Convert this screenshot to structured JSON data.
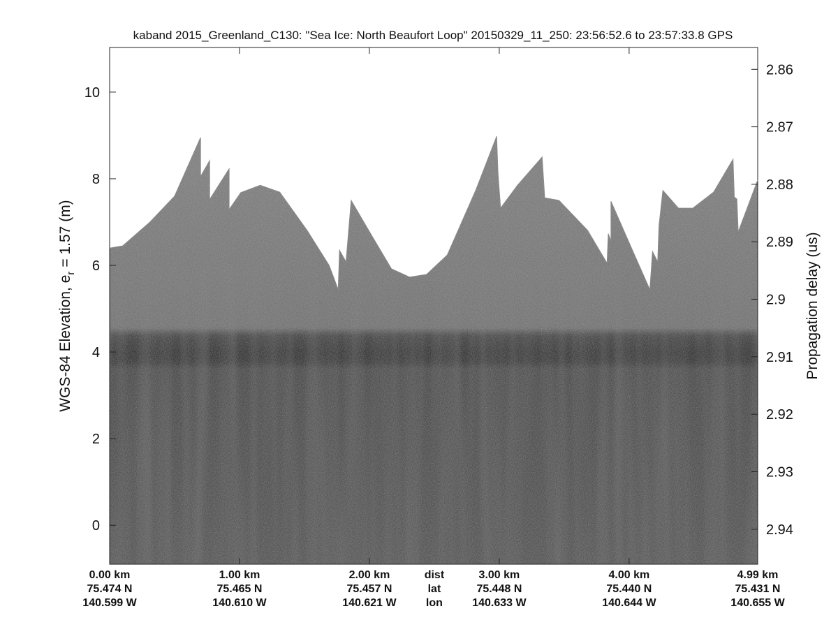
{
  "chart_data": {
    "type": "radargram",
    "title": "kaband 2015_Greenland_C130: \"Sea Ice: North Beaufort Loop\"  20150329_11_250: 23:56:52.6 to 23:57:33.8 GPS",
    "ylabel": {
      "main": "WGS-84 Elevation, e",
      "subscript": "r",
      "after": "= 1.57 (m)"
    },
    "y2label": "Propagation delay (us)",
    "xlim": [
      0,
      4.99
    ],
    "xticks": [
      {
        "value": 0,
        "label": "0.00 km"
      },
      {
        "value": 1,
        "label": "1.00 km"
      },
      {
        "value": 2,
        "label": "2.00 km"
      },
      {
        "value": 3,
        "label": "3.00 km"
      },
      {
        "value": 4,
        "label": "4.00 km"
      },
      {
        "value": 4.99,
        "label": "4.99 km"
      }
    ],
    "xtick_lat": [
      "75.474 N",
      "75.465 N",
      "75.457 N",
      "75.448 N",
      "75.440 N",
      "75.431 N"
    ],
    "xtick_lon": [
      "140.599 W",
      "140.610 W",
      "140.621 W",
      "140.633 W",
      "140.644 W",
      "140.655 W"
    ],
    "row_labels": [
      "dist",
      "lat",
      "lon"
    ],
    "ylim": [
      -0.9,
      11.03
    ],
    "yticks": [
      0,
      2,
      4,
      6,
      8,
      10
    ],
    "y2lim": [
      2.8562,
      2.9461
    ],
    "y2_inverted": true,
    "y2ticks": [
      2.86,
      2.87,
      2.88,
      2.89,
      2.9,
      2.91,
      2.92,
      2.93,
      2.94
    ],
    "surface": {
      "x": [
        0,
        0.1,
        0.31,
        0.5,
        0.7,
        0.7,
        0.77,
        0.77,
        0.92,
        0.92,
        1.01,
        1.16,
        1.31,
        1.52,
        1.69,
        1.76,
        1.77,
        1.82,
        1.86,
        2.01,
        2.17,
        2.31,
        2.44,
        2.6,
        2.82,
        2.98,
        2.99,
        3.01,
        3.14,
        3.33,
        3.35,
        3.46,
        3.68,
        3.83,
        3.84,
        3.86,
        3.86,
        4.03,
        4.16,
        4.18,
        4.22,
        4.23,
        4.26,
        4.38,
        4.49,
        4.65,
        4.8,
        4.81,
        4.83,
        4.84,
        4.99
      ],
      "values": [
        6.4,
        6.45,
        7.0,
        7.6,
        8.95,
        8.05,
        8.42,
        7.52,
        8.23,
        7.29,
        7.68,
        7.85,
        7.69,
        6.81,
        6.0,
        5.44,
        6.35,
        6.08,
        7.5,
        6.73,
        5.92,
        5.73,
        5.79,
        6.24,
        7.74,
        8.98,
        8.13,
        7.32,
        7.85,
        8.5,
        7.56,
        7.5,
        6.81,
        6.05,
        6.73,
        6.56,
        7.48,
        6.32,
        5.44,
        6.32,
        6.08,
        6.92,
        7.73,
        7.32,
        7.32,
        7.69,
        8.45,
        7.58,
        7.53,
        6.77,
        7.97
      ]
    }
  }
}
